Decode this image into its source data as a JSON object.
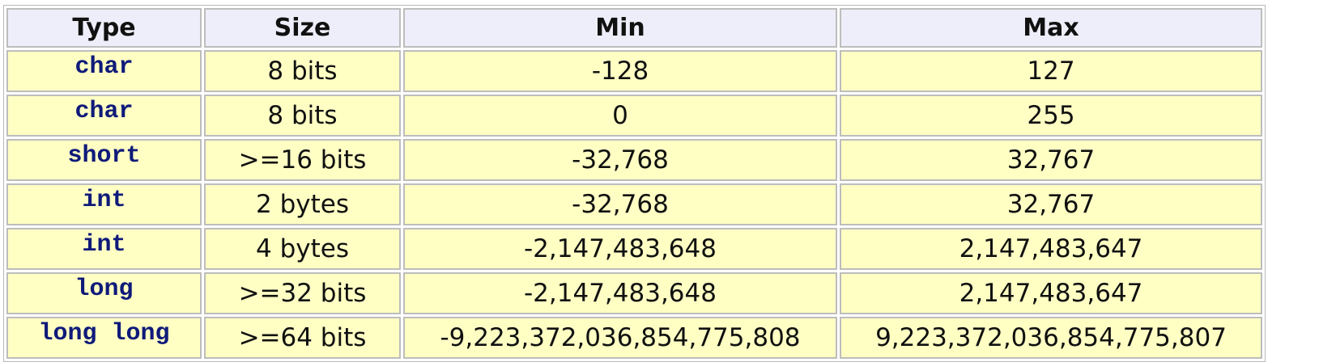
{
  "table": {
    "headers": [
      "Type",
      "Size",
      "Min",
      "Max"
    ],
    "rows": [
      {
        "type": "char",
        "size": "8 bits",
        "min": "-128",
        "max": "127"
      },
      {
        "type": "char",
        "size": "8 bits",
        "min": "0",
        "max": "255"
      },
      {
        "type": "short",
        "size": ">=16 bits",
        "min": "-32,768",
        "max": "32,767"
      },
      {
        "type": "int",
        "size": "2 bytes",
        "min": "-32,768",
        "max": "32,767"
      },
      {
        "type": "int",
        "size": "4 bytes",
        "min": "-2,147,483,648",
        "max": "2,147,483,647"
      },
      {
        "type": "long",
        "size": ">=32 bits",
        "min": "-2,147,483,648",
        "max": "2,147,483,647"
      },
      {
        "type": "long long",
        "size": ">=64 bits",
        "min": "-9,223,372,036,854,775,808",
        "max": "9,223,372,036,854,775,807"
      }
    ]
  },
  "colors": {
    "header_bg": "#eeeefa",
    "cell_bg": "#ffffc4",
    "type_text": "#0f1a7a",
    "border": "#bdbdbd"
  }
}
